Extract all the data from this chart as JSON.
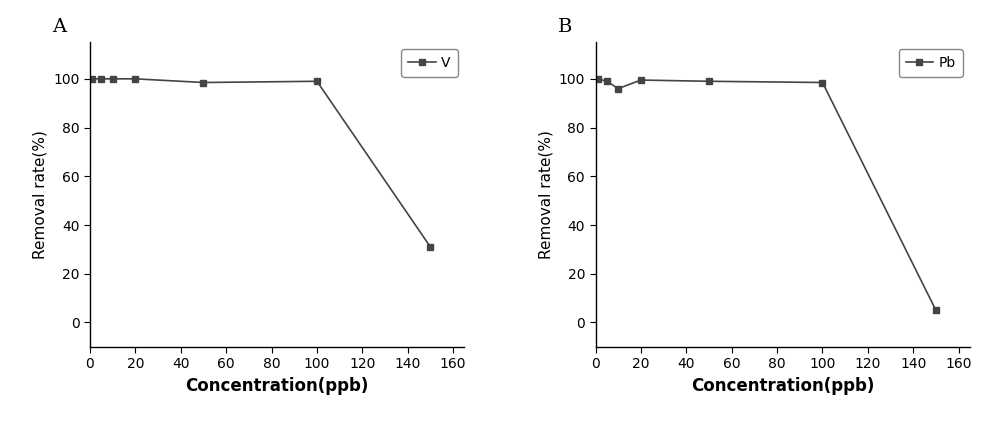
{
  "panel_A": {
    "label": "A",
    "x": [
      1,
      5,
      10,
      20,
      50,
      100,
      150
    ],
    "y": [
      100,
      100,
      100,
      100,
      98.5,
      99,
      31
    ],
    "legend_label": "V",
    "xlabel": "Concentration(ppb)",
    "ylabel": "Removal rate(%)",
    "xlim": [
      0,
      165
    ],
    "ylim": [
      -10,
      115
    ],
    "xticks": [
      0,
      20,
      40,
      60,
      80,
      100,
      120,
      140,
      160
    ],
    "yticks": [
      0,
      20,
      40,
      60,
      80,
      100
    ]
  },
  "panel_B": {
    "label": "B",
    "x": [
      1,
      5,
      10,
      20,
      50,
      100,
      150
    ],
    "y": [
      100,
      99,
      96,
      99.5,
      99,
      98.5,
      5
    ],
    "legend_label": "Pb",
    "xlabel": "Concentration(ppb)",
    "ylabel": "Removal rate(%)",
    "xlim": [
      0,
      165
    ],
    "ylim": [
      -10,
      115
    ],
    "xticks": [
      0,
      20,
      40,
      60,
      80,
      100,
      120,
      140,
      160
    ],
    "yticks": [
      0,
      20,
      40,
      60,
      80,
      100
    ]
  },
  "line_color": "#444444",
  "marker": "s",
  "marker_size": 5,
  "marker_facecolor": "#444444",
  "line_width": 1.2,
  "background_color": "#ffffff",
  "xlabel_fontsize": 12,
  "ylabel_fontsize": 11,
  "tick_fontsize": 10,
  "legend_fontsize": 10,
  "panel_label_fontsize": 14
}
